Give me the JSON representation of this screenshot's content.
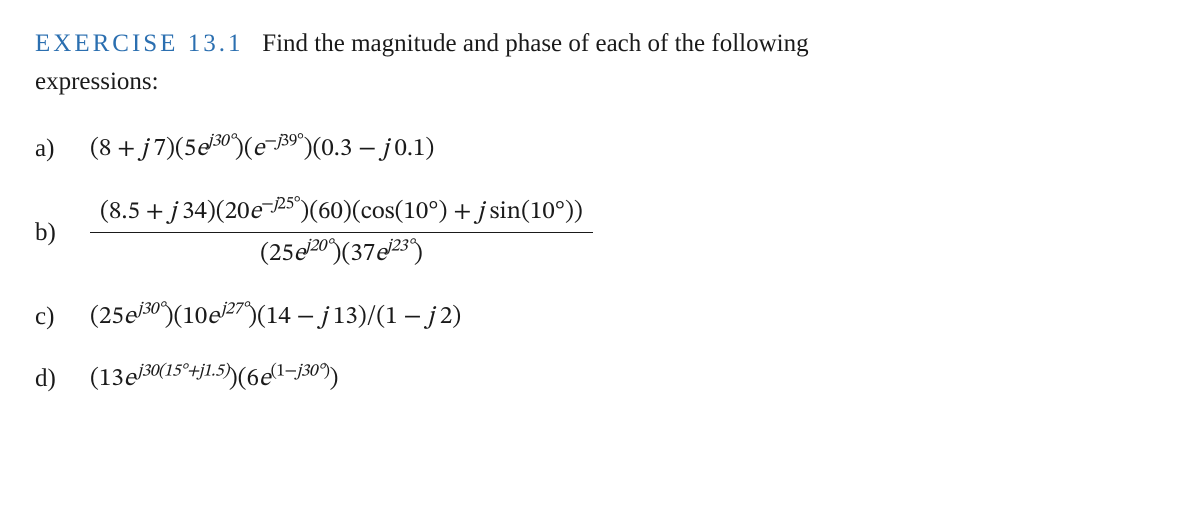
{
  "header": {
    "exercise_label": "EXERCISE 13.1",
    "prompt_text": "Find the magnitude and phase of each of the following",
    "prompt_continuation": "expressions:",
    "label_color": "#2b6fb0",
    "text_color": "#1a1a1a",
    "background_color": "#ffffff",
    "font_size_pt": 19
  },
  "items": [
    {
      "label": "a)",
      "expression_text": "(8 + j7)(5e^{j30°})(e^{−j39°})(0.3 − j0.1)",
      "terms": {
        "term1_re": "8",
        "term1_im": "7",
        "term2_mag": "5",
        "term2_exp": "j30°",
        "term3_exp": "−j39°",
        "term4_re": "0.3",
        "term4_im": "0.1"
      }
    },
    {
      "label": "b)",
      "expression_text": "(8.5 + j34)(20e^{−j25°})(60)(cos(10°) + j sin(10°)) / ((25e^{j20°})(37e^{j23°}))",
      "numerator": {
        "term1_re": "8.5",
        "term1_im": "34",
        "term2_mag": "20",
        "term2_exp": "−j25°",
        "term3": "60",
        "term4_cos_arg": "10°",
        "term4_sin_arg": "10°"
      },
      "denominator": {
        "term1_mag": "25",
        "term1_exp": "j20°",
        "term2_mag": "37",
        "term2_exp": "j23°"
      }
    },
    {
      "label": "c)",
      "expression_text": "(25e^{j30°})(10e^{j27°})(14 − j13)/(1 − j2)",
      "terms": {
        "term1_mag": "25",
        "term1_exp": "j30°",
        "term2_mag": "10",
        "term2_exp": "j27°",
        "term3_re": "14",
        "term3_im": "13",
        "term4_re": "1",
        "term4_im": "2"
      }
    },
    {
      "label": "d)",
      "expression_text": "(13e^{j30(15°+j1.5)})(6e^{(1−j30°)})",
      "terms": {
        "term1_mag": "13",
        "term1_exp_outer": "j30",
        "term1_exp_inner_a": "15°",
        "term1_exp_inner_b": "j1.5",
        "term2_mag": "6",
        "term2_exp_a": "1",
        "term2_exp_b": "j30°"
      }
    }
  ]
}
